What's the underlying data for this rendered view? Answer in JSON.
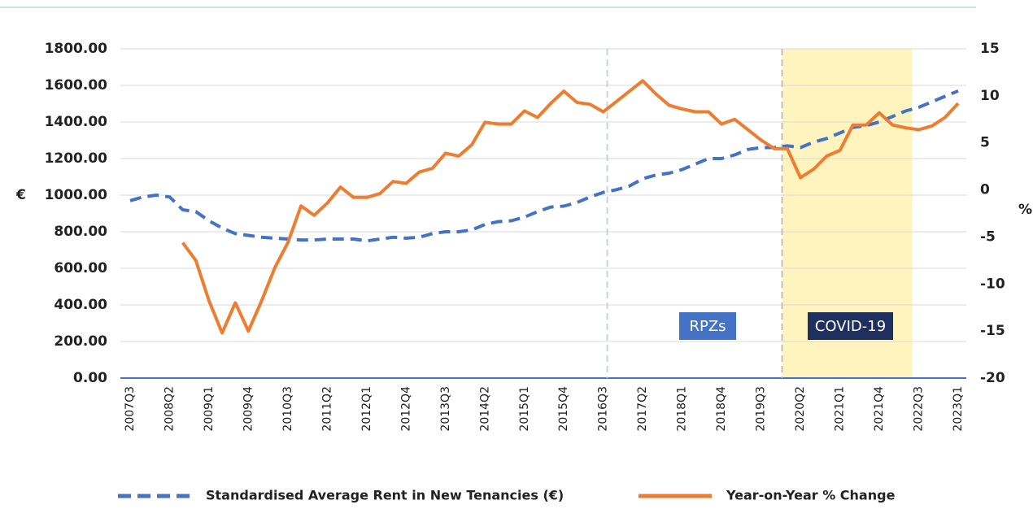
{
  "chart_data": {
    "type": "line",
    "categories": [
      "2007Q3",
      null,
      null,
      "2008Q2",
      null,
      null,
      "2009Q1",
      null,
      null,
      "2009Q4",
      null,
      null,
      "2010Q3",
      null,
      null,
      "2011Q2",
      null,
      null,
      "2012Q1",
      null,
      null,
      "2012Q4",
      null,
      null,
      "2013Q3",
      null,
      null,
      "2014Q2",
      null,
      null,
      "2015Q1",
      null,
      null,
      "2015Q4",
      null,
      null,
      "2016Q3",
      null,
      null,
      "2017Q2",
      null,
      null,
      "2018Q1",
      null,
      null,
      "2018Q4",
      null,
      null,
      "2019Q3",
      null,
      null,
      "2020Q2",
      null,
      null,
      "2021Q1",
      null,
      null,
      "2021Q4",
      null,
      null,
      "2022Q3",
      null,
      null,
      "2023Q1"
    ],
    "series": [
      {
        "name": "Standardised Average Rent in New Tenancies (€)",
        "color": "#4472c4",
        "dash": true,
        "values": [
          970,
          990,
          1000,
          990,
          920,
          910,
          860,
          820,
          790,
          780,
          770,
          765,
          760,
          755,
          755,
          760,
          760,
          760,
          750,
          760,
          770,
          765,
          770,
          790,
          800,
          800,
          810,
          840,
          855,
          860,
          880,
          910,
          935,
          940,
          960,
          990,
          1015,
          1030,
          1050,
          1090,
          1110,
          1120,
          1140,
          1170,
          1200,
          1200,
          1220,
          1250,
          1260,
          1260,
          1270,
          1260,
          1290,
          1310,
          1340,
          1370,
          1380,
          1400,
          1430,
          1460,
          1480,
          1510,
          1540,
          1570
        ]
      },
      {
        "name": "Year-on-Year % Change",
        "color": "#ed7d31",
        "axis": "y2",
        "values": [
          null,
          null,
          null,
          null,
          -5.6,
          -7.5,
          -11.8,
          -15.2,
          -12,
          -15,
          -11.8,
          -8.3,
          -5.6,
          -1.7,
          -2.7,
          -1.4,
          0.3,
          -0.8,
          -0.8,
          -0.4,
          0.9,
          0.7,
          1.9,
          2.3,
          3.9,
          3.6,
          4.8,
          7.2,
          7.0,
          7.0,
          8.4,
          7.7,
          9.2,
          10.5,
          9.3,
          9.1,
          8.3,
          9.4,
          10.5,
          11.6,
          10.2,
          9.0,
          8.6,
          8.3,
          8.3,
          7.0,
          7.5,
          6.4,
          5.3,
          4.4,
          4.4,
          1.3,
          2.2,
          3.6,
          4.2,
          6.9,
          6.9,
          8.2,
          6.9,
          6.6,
          6.4,
          6.8,
          7.7,
          9.2
        ]
      }
    ],
    "ylabel": "€",
    "y2label": "%",
    "ylim": [
      0,
      1800
    ],
    "yticks": [
      {
        "value": 0,
        "label": "0.00"
      },
      {
        "value": 200,
        "label": "200.00"
      },
      {
        "value": 400,
        "label": "400.00"
      },
      {
        "value": 600,
        "label": "600.00"
      },
      {
        "value": 800,
        "label": "800.00"
      },
      {
        "value": 1000,
        "label": "1000.00"
      },
      {
        "value": 1200,
        "label": "1200.00"
      },
      {
        "value": 1400,
        "label": "1400.00"
      },
      {
        "value": 1600,
        "label": "1600.00"
      },
      {
        "value": 1800,
        "label": "1800.00"
      }
    ],
    "y2lim": [
      -20,
      15
    ],
    "y2ticks": [
      -20,
      -15,
      -10,
      -5,
      0,
      5,
      10,
      15
    ],
    "grid": true,
    "annotations": [
      "RPZs",
      "COVID-19"
    ],
    "legend": "bottom"
  }
}
